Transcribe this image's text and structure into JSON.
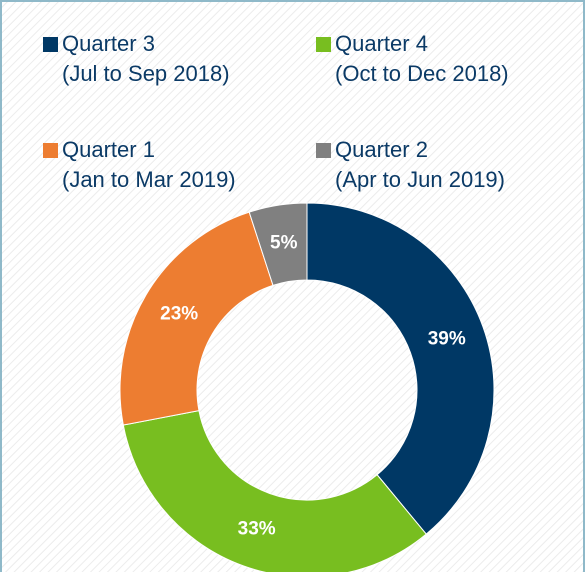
{
  "chart_data": {
    "type": "pie",
    "donut": true,
    "categories": [
      "Quarter 3",
      "Quarter 4",
      "Quarter 1",
      "Quarter 2"
    ],
    "periods": [
      "(Jul to Sep 2018)",
      "(Oct to Dec 2018)",
      "(Jan to Mar 2019)",
      "(Apr to Jun 2019)"
    ],
    "values": [
      39,
      33,
      23,
      5
    ],
    "value_labels": [
      "39%",
      "33%",
      "23%",
      "5%"
    ],
    "colors": [
      "#003865",
      "#78be20",
      "#ed7d31",
      "#808080"
    ]
  }
}
